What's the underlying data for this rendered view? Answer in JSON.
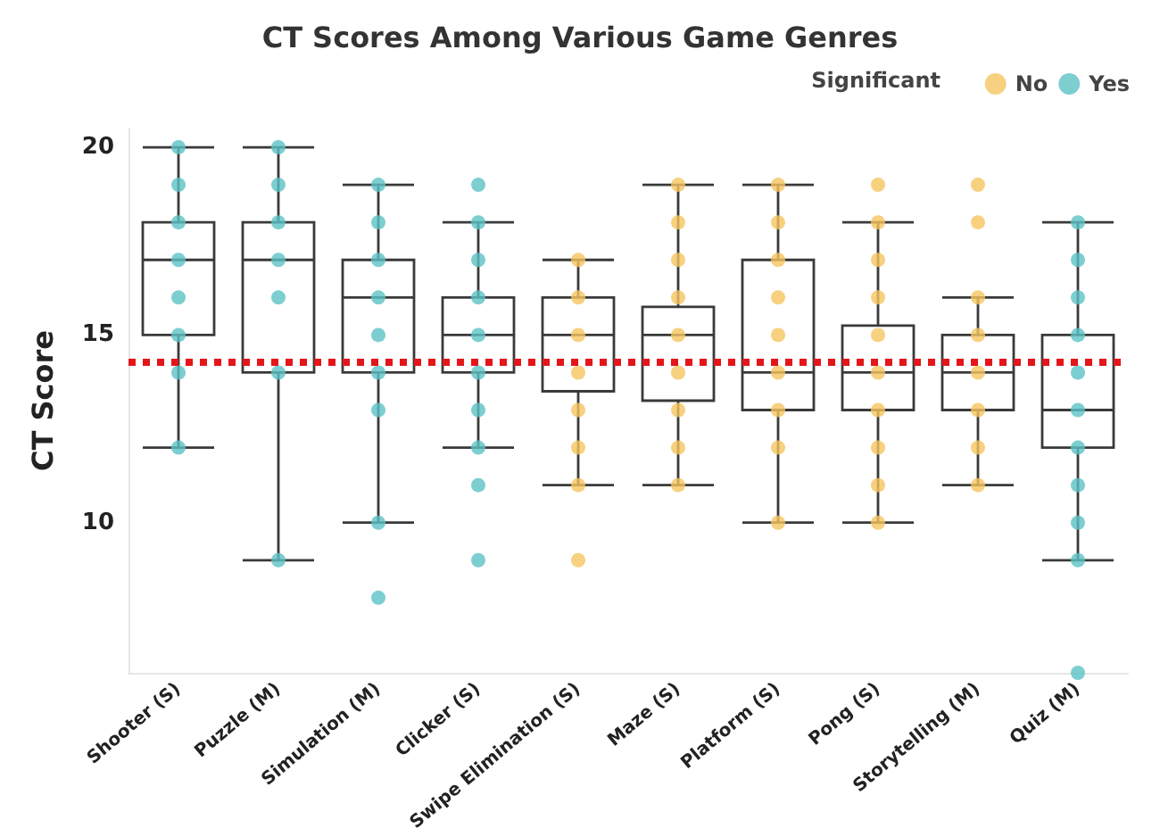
{
  "chart_data": {
    "type": "box",
    "title": "CT Scores Among Various Game Genres",
    "ylabel": "CT Score",
    "legend_title": "Significant",
    "categories": [
      "Shooter (S)",
      "Puzzle (M)",
      "Simulation (M)",
      "Clicker (S)",
      "Swipe Elimination (S)",
      "Maze (S)",
      "Platform (S)",
      "Pong (S)",
      "Storytelling (M)",
      "Quiz (M)"
    ],
    "boxes": [
      {
        "low": 12,
        "q1": 15,
        "median": 17,
        "q3": 18,
        "high": 20
      },
      {
        "low": 9,
        "q1": 14,
        "median": 17,
        "q3": 18,
        "high": 20
      },
      {
        "low": 10,
        "q1": 14,
        "median": 16,
        "q3": 17,
        "high": 19
      },
      {
        "low": 12,
        "q1": 14,
        "median": 15,
        "q3": 16,
        "high": 18
      },
      {
        "low": 11,
        "q1": 13.5,
        "median": 15,
        "q3": 16,
        "high": 17
      },
      {
        "low": 11,
        "q1": 13.25,
        "median": 15,
        "q3": 15.75,
        "high": 19
      },
      {
        "low": 10,
        "q1": 13,
        "median": 14,
        "q3": 17,
        "high": 19
      },
      {
        "low": 10,
        "q1": 13,
        "median": 14,
        "q3": 15.25,
        "high": 18
      },
      {
        "low": 11,
        "q1": 13,
        "median": 14,
        "q3": 15,
        "high": 16
      },
      {
        "low": 9,
        "q1": 12,
        "median": 13,
        "q3": 15,
        "high": 18
      }
    ],
    "series": [
      {
        "name": "No",
        "type": "scatter",
        "color": "#f5c55f",
        "x": [
          "Swipe Elimination (S)",
          "Swipe Elimination (S)",
          "Swipe Elimination (S)",
          "Swipe Elimination (S)",
          "Swipe Elimination (S)",
          "Swipe Elimination (S)",
          "Swipe Elimination (S)",
          "Swipe Elimination (S)",
          "Maze (S)",
          "Maze (S)",
          "Maze (S)",
          "Maze (S)",
          "Maze (S)",
          "Maze (S)",
          "Maze (S)",
          "Maze (S)",
          "Maze (S)",
          "Platform (S)",
          "Platform (S)",
          "Platform (S)",
          "Platform (S)",
          "Platform (S)",
          "Platform (S)",
          "Platform (S)",
          "Platform (S)",
          "Platform (S)",
          "Pong (S)",
          "Pong (S)",
          "Pong (S)",
          "Pong (S)",
          "Pong (S)",
          "Pong (S)",
          "Pong (S)",
          "Pong (S)",
          "Pong (S)",
          "Pong (S)",
          "Storytelling (M)",
          "Storytelling (M)",
          "Storytelling (M)",
          "Storytelling (M)",
          "Storytelling (M)",
          "Storytelling (M)",
          "Storytelling (M)",
          "Storytelling (M)"
        ],
        "values": [
          17,
          16,
          15,
          14,
          13,
          12,
          11,
          9,
          19,
          18,
          17,
          16,
          15,
          14,
          13,
          12,
          11,
          19,
          18,
          17,
          16,
          15,
          14,
          13,
          12,
          10,
          19,
          18,
          17,
          16,
          15,
          14,
          13,
          12,
          11,
          10,
          19,
          18,
          16,
          15,
          14,
          13,
          12,
          11
        ]
      },
      {
        "name": "Yes",
        "type": "scatter",
        "color": "#5cc2c6",
        "x": [
          "Shooter (S)",
          "Shooter (S)",
          "Shooter (S)",
          "Shooter (S)",
          "Shooter (S)",
          "Shooter (S)",
          "Shooter (S)",
          "Shooter (S)",
          "Puzzle (M)",
          "Puzzle (M)",
          "Puzzle (M)",
          "Puzzle (M)",
          "Puzzle (M)",
          "Puzzle (M)",
          "Puzzle (M)",
          "Simulation (M)",
          "Simulation (M)",
          "Simulation (M)",
          "Simulation (M)",
          "Simulation (M)",
          "Simulation (M)",
          "Simulation (M)",
          "Simulation (M)",
          "Simulation (M)",
          "Clicker (S)",
          "Clicker (S)",
          "Clicker (S)",
          "Clicker (S)",
          "Clicker (S)",
          "Clicker (S)",
          "Clicker (S)",
          "Clicker (S)",
          "Clicker (S)",
          "Clicker (S)",
          "Quiz (M)",
          "Quiz (M)",
          "Quiz (M)",
          "Quiz (M)",
          "Quiz (M)",
          "Quiz (M)",
          "Quiz (M)",
          "Quiz (M)",
          "Quiz (M)",
          "Quiz (M)",
          "Quiz (M)"
        ],
        "values": [
          20,
          19,
          18,
          17,
          16,
          15,
          14,
          12,
          20,
          19,
          18,
          17,
          16,
          14,
          9,
          19,
          18,
          17,
          16,
          15,
          14,
          13,
          10,
          8,
          19,
          18,
          17,
          16,
          15,
          14,
          13,
          12,
          11,
          9,
          18,
          17,
          16,
          15,
          14,
          13,
          12,
          11,
          10,
          9,
          6
        ]
      }
    ],
    "ref_lines": [
      {
        "axis": "y",
        "value": 14.3,
        "color": "#e3161b",
        "line_style": "dotted"
      }
    ],
    "ylim": [
      6,
      20.5
    ],
    "yticks": [
      10,
      15,
      20
    ],
    "grid": false,
    "legend": "top right",
    "marker": "circle"
  }
}
